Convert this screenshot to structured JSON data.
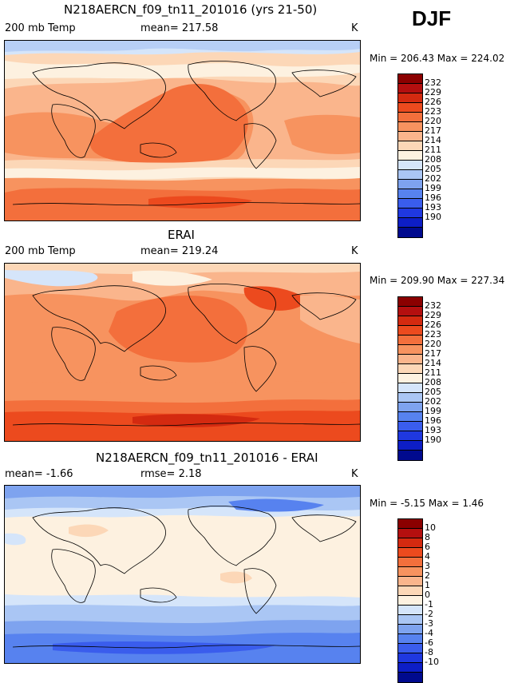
{
  "season": "DJF",
  "panels": [
    {
      "title": "N218AERCN_f09_tn11_201016 (yrs 21-50)",
      "left_label": "200 mb Temp",
      "center_label": "mean= 217.58",
      "units": "K",
      "minmax": "Min = 206.43 Max = 224.02",
      "colorbar": {
        "labels": [
          "232",
          "229",
          "226",
          "223",
          "220",
          "217",
          "214",
          "211",
          "208",
          "205",
          "202",
          "199",
          "196",
          "193",
          "190"
        ],
        "colors": [
          "#8b0000",
          "#b40f0f",
          "#d42a10",
          "#ec4a1e",
          "#f36f3c",
          "#f7935f",
          "#fab58c",
          "#fcd7b7",
          "#fdf1e0",
          "#d5e5fa",
          "#aac6f4",
          "#7ea3ef",
          "#5782ef",
          "#3a5ded",
          "#1f38e0",
          "#0d1ec6",
          "#000a8e"
        ]
      }
    },
    {
      "title": "ERAI",
      "left_label": "200 mb Temp",
      "center_label": "mean= 219.24",
      "units": "K",
      "minmax": "Min = 209.90 Max = 227.34",
      "colorbar": {
        "labels": [
          "232",
          "229",
          "226",
          "223",
          "220",
          "217",
          "214",
          "211",
          "208",
          "205",
          "202",
          "199",
          "196",
          "193",
          "190"
        ],
        "colors": [
          "#8b0000",
          "#b40f0f",
          "#d42a10",
          "#ec4a1e",
          "#f36f3c",
          "#f7935f",
          "#fab58c",
          "#fcd7b7",
          "#fdf1e0",
          "#d5e5fa",
          "#aac6f4",
          "#7ea3ef",
          "#5782ef",
          "#3a5ded",
          "#1f38e0",
          "#0d1ec6",
          "#000a8e"
        ]
      }
    },
    {
      "title": "N218AERCN_f09_tn11_201016 - ERAI",
      "left_label": "mean=  -1.66",
      "center_label": "rmse=   2.18",
      "units": "K",
      "minmax": "Min =  -5.15 Max =   1.46",
      "colorbar": {
        "labels": [
          "10",
          "8",
          "6",
          "4",
          "3",
          "2",
          "1",
          "0",
          "-1",
          "-2",
          "-3",
          "-4",
          "-6",
          "-8",
          "-10"
        ],
        "colors": [
          "#8b0000",
          "#b40f0f",
          "#d42a10",
          "#ec4a1e",
          "#f36f3c",
          "#f7935f",
          "#fab58c",
          "#fcd7b7",
          "#fdf1e0",
          "#d5e5fa",
          "#aac6f4",
          "#7ea3ef",
          "#5782ef",
          "#3a5ded",
          "#1f38e0",
          "#0d1ec6",
          "#000a8e"
        ]
      }
    }
  ]
}
